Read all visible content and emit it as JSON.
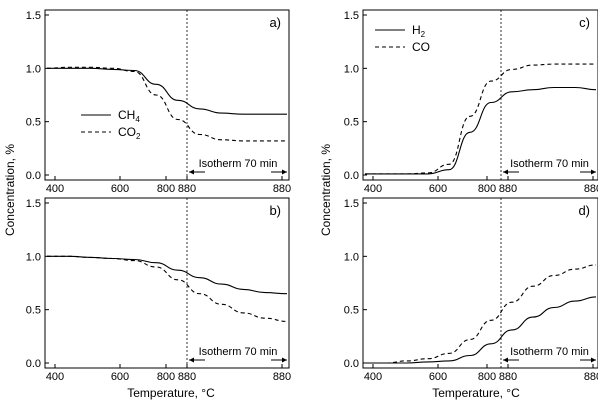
{
  "figure": {
    "y_axis_label": "Concentration, %",
    "x_axis_label_left": "Temperature, °C",
    "x_axis_label_right": "Temperature, °C"
  },
  "chart_data": [
    {
      "panel": "a)",
      "type": "line",
      "x_ticks": [
        "400",
        "600",
        "800",
        "880",
        "880"
      ],
      "ylim": [
        0,
        1.5
      ],
      "y_ticks": [
        "0.0",
        "0.5",
        "1.0",
        "1.5"
      ],
      "annotation": "Isotherm 70 min",
      "legend": [
        {
          "label": "CH",
          "subscript": "4",
          "style": "solid"
        },
        {
          "label": "CO",
          "subscript": "2",
          "style": "dashed"
        }
      ],
      "legend_position": "middle-left",
      "series": [
        {
          "name": "CH4",
          "style": "solid",
          "values": [
            1.0,
            1.0,
            1.0,
            0.99,
            0.98,
            0.85,
            0.7,
            0.62,
            0.58,
            0.57,
            0.57,
            0.57
          ]
        },
        {
          "name": "CO2",
          "style": "dashed",
          "values": [
            1.0,
            1.01,
            1.01,
            1.0,
            0.97,
            0.75,
            0.52,
            0.38,
            0.33,
            0.32,
            0.32,
            0.32
          ]
        }
      ]
    },
    {
      "panel": "b)",
      "type": "line",
      "x_ticks": [
        "400",
        "600",
        "800",
        "880",
        "880"
      ],
      "ylim": [
        0,
        1.5
      ],
      "y_ticks": [
        "0.0",
        "0.5",
        "1.0",
        "1.5"
      ],
      "annotation": "Isotherm 70 min",
      "series": [
        {
          "name": "CH4",
          "style": "solid",
          "values": [
            1.0,
            1.0,
            0.99,
            0.98,
            0.97,
            0.94,
            0.87,
            0.8,
            0.74,
            0.69,
            0.66,
            0.65
          ]
        },
        {
          "name": "CO2",
          "style": "dashed",
          "values": [
            1.0,
            1.0,
            0.99,
            0.98,
            0.96,
            0.9,
            0.78,
            0.65,
            0.55,
            0.47,
            0.42,
            0.39
          ]
        }
      ]
    },
    {
      "panel": "c)",
      "type": "line",
      "x_ticks": [
        "400",
        "600",
        "800",
        "880",
        "880"
      ],
      "ylim": [
        0,
        1.5
      ],
      "y_ticks": [
        "0.0",
        "0.5",
        "1.0",
        "1.5"
      ],
      "annotation": "Isotherm 70 min",
      "legend": [
        {
          "label": "H",
          "subscript": "2",
          "style": "solid"
        },
        {
          "label": "CO",
          "subscript": "",
          "style": "dashed"
        }
      ],
      "legend_position": "top-left",
      "series": [
        {
          "name": "H2",
          "style": "solid",
          "values": [
            0.01,
            0.01,
            0.01,
            0.01,
            0.05,
            0.4,
            0.68,
            0.78,
            0.8,
            0.82,
            0.82,
            0.8
          ]
        },
        {
          "name": "CO",
          "style": "dashed",
          "values": [
            0.01,
            0.01,
            0.01,
            0.02,
            0.1,
            0.55,
            0.88,
            0.99,
            1.03,
            1.04,
            1.04,
            1.04
          ]
        }
      ]
    },
    {
      "panel": "d)",
      "type": "line",
      "x_ticks": [
        "400",
        "600",
        "800",
        "880",
        "880"
      ],
      "ylim": [
        0,
        1.5
      ],
      "y_ticks": [
        "0.0",
        "0.5",
        "1.0",
        "1.5"
      ],
      "annotation": "Isotherm 70 min",
      "series": [
        {
          "name": "H2",
          "style": "solid",
          "values": [
            0.0,
            0.0,
            0.0,
            0.01,
            0.02,
            0.07,
            0.18,
            0.31,
            0.43,
            0.52,
            0.58,
            0.62
          ]
        },
        {
          "name": "CO",
          "style": "dashed",
          "values": [
            0.0,
            0.0,
            0.02,
            0.04,
            0.09,
            0.22,
            0.4,
            0.57,
            0.72,
            0.82,
            0.88,
            0.92
          ]
        }
      ]
    }
  ]
}
